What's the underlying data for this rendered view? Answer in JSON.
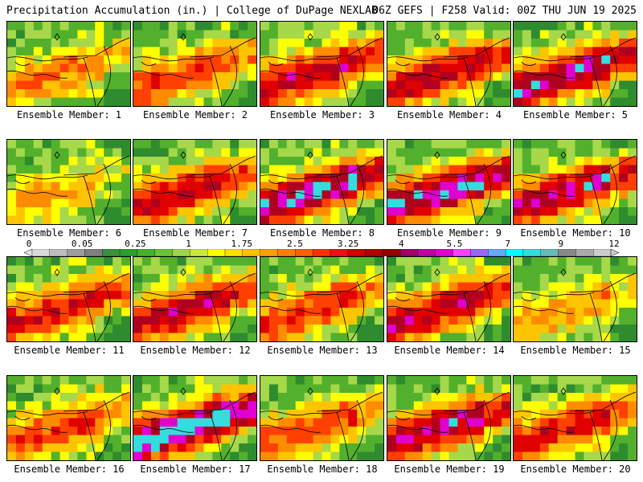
{
  "header": {
    "title_left": "Precipitation Accumulation (in.) | College of DuPage NEXLAB",
    "title_right": "06Z GEFS | F258 Valid: 00Z THU JUN 19 2025"
  },
  "members": [
    {
      "label": "Ensemble Member: 1",
      "intensity": 0.8
    },
    {
      "label": "Ensemble Member: 2",
      "intensity": 1.0
    },
    {
      "label": "Ensemble Member: 3",
      "intensity": 1.4
    },
    {
      "label": "Ensemble Member: 4",
      "intensity": 1.4
    },
    {
      "label": "Ensemble Member: 5",
      "intensity": 1.6
    },
    {
      "label": "Ensemble Member: 6",
      "intensity": 0.6
    },
    {
      "label": "Ensemble Member: 7",
      "intensity": 1.3
    },
    {
      "label": "Ensemble Member: 8",
      "intensity": 1.7
    },
    {
      "label": "Ensemble Member: 9",
      "intensity": 1.7
    },
    {
      "label": "Ensemble Member: 10",
      "intensity": 1.5
    },
    {
      "label": "Ensemble Member: 11",
      "intensity": 1.2
    },
    {
      "label": "Ensemble Member: 12",
      "intensity": 1.4
    },
    {
      "label": "Ensemble Member: 13",
      "intensity": 1.1
    },
    {
      "label": "Ensemble Member: 14",
      "intensity": 1.4
    },
    {
      "label": "Ensemble Member: 15",
      "intensity": 0.7
    },
    {
      "label": "Ensemble Member: 16",
      "intensity": 1.0
    },
    {
      "label": "Ensemble Member: 17",
      "intensity": 1.9
    },
    {
      "label": "Ensemble Member: 18",
      "intensity": 1.0
    },
    {
      "label": "Ensemble Member: 19",
      "intensity": 1.5
    },
    {
      "label": "Ensemble Member: 20",
      "intensity": 1.2
    }
  ],
  "colorbar": {
    "labels": [
      "0",
      "0.05",
      "0.25",
      "1",
      "1.75",
      "2.5",
      "3.25",
      "4",
      "5.5",
      "7",
      "9",
      "12"
    ],
    "colors": [
      "#d9d9d9",
      "#bdbdbd",
      "#9e9e9e",
      "#7f7f7f",
      "#3c8f3c",
      "#2e9e2e",
      "#45b02c",
      "#6cc23a",
      "#9ed64a",
      "#c8ea3c",
      "#ffff00",
      "#ffe000",
      "#ffc000",
      "#ffa000",
      "#ff8000",
      "#ff6000",
      "#ff3000",
      "#ee1010",
      "#d00000",
      "#b00000",
      "#900000",
      "#a0006a",
      "#c000a0",
      "#e000d0",
      "#ff40ff",
      "#9966ff",
      "#66aaff",
      "#00ffff",
      "#33dddd",
      "#66bbbb",
      "#888888",
      "#aaaaaa",
      "#cccccc"
    ]
  }
}
